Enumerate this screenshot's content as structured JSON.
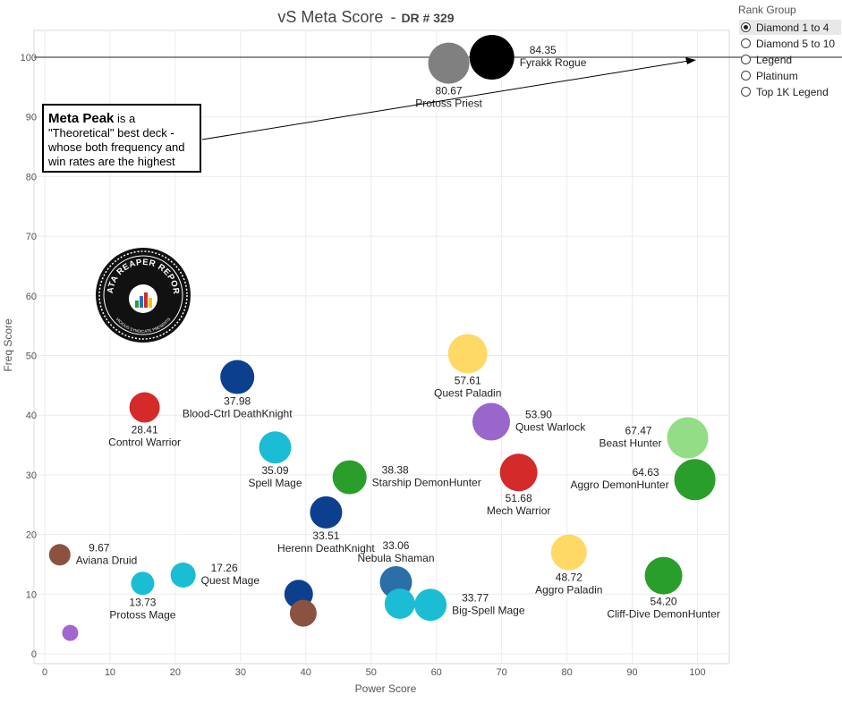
{
  "title": "vS Meta Score",
  "subtitle": "DR # 329",
  "rank_group": {
    "title": "Rank Group",
    "options": [
      "Diamond 1 to 4",
      "Diamond 5 to 10",
      "Legend",
      "Platinum",
      "Top 1K Legend"
    ],
    "selected": "Diamond 1 to 4"
  },
  "annotation": {
    "bold": "Meta Peak",
    "text": " is a \"Theoretical\" best deck - whose both frequency and win rates are the highest"
  },
  "logo": {
    "text_top": "DATA REAPER REPORT",
    "text_bottom": "VICIOUS SYNDICATE PRESENTS"
  },
  "colors": {
    "black": "#000000",
    "gray": "#808080",
    "yellow": "#FFD966",
    "purple": "#9966CC",
    "light_purple": "#A366D1",
    "red": "#D42A2A",
    "light_green": "#92DD86",
    "green": "#2A9E2A",
    "navy": "#0D3F8F",
    "cyan": "#1BBDD4",
    "blue": "#2A6FA8",
    "brown": "#8B5240"
  },
  "chart_data": {
    "type": "scatter",
    "xlabel": "Power Score",
    "ylabel": "Freq Score",
    "xlim": [
      0,
      104
    ],
    "ylim": [
      -1,
      105
    ],
    "xticks": [
      0,
      10,
      20,
      30,
      40,
      50,
      60,
      70,
      80,
      90,
      100
    ],
    "yticks": [
      0,
      10,
      20,
      30,
      40,
      50,
      60,
      70,
      80,
      90,
      100
    ],
    "grid": true,
    "reference_line_y": 100,
    "points": [
      {
        "name": "Fyrakk Rogue",
        "score": "84.35",
        "x": 68.5,
        "y": 100,
        "size": 25,
        "color": "black",
        "label_pos": "right"
      },
      {
        "name": "Protoss Priest",
        "score": "80.67",
        "x": 61.9,
        "y": 99,
        "size": 23,
        "color": "gray",
        "label_pos": "below"
      },
      {
        "name": "Quest Paladin",
        "score": "57.61",
        "x": 64.8,
        "y": 50.3,
        "size": 22,
        "color": "yellow",
        "label_pos": "below"
      },
      {
        "name": "Quest Warlock",
        "score": "53.90",
        "x": 68.4,
        "y": 38.9,
        "size": 21,
        "color": "purple",
        "label_pos": "right"
      },
      {
        "name": "Beast Hunter",
        "score": "67.47",
        "x": 98.5,
        "y": 36.2,
        "size": 23,
        "color": "light_green",
        "label_pos": "left"
      },
      {
        "name": "Aggro DemonHunter",
        "score": "64.63",
        "x": 99.6,
        "y": 29.2,
        "size": 23,
        "color": "green",
        "label_pos": "left"
      },
      {
        "name": "Mech Warrior",
        "score": "51.68",
        "x": 72.6,
        "y": 30.4,
        "size": 21,
        "color": "red",
        "label_pos": "below"
      },
      {
        "name": "Starship DemonHunter",
        "score": "38.38",
        "x": 46.7,
        "y": 29.6,
        "size": 19,
        "color": "green",
        "label_pos": "right"
      },
      {
        "name": "Blood-Ctrl DeathKnight",
        "score": "37.98",
        "x": 29.5,
        "y": 46.4,
        "size": 19,
        "color": "navy",
        "label_pos": "below"
      },
      {
        "name": "Control Warrior",
        "score": "28.41",
        "x": 15.3,
        "y": 41.3,
        "size": 17,
        "color": "red",
        "label_pos": "below"
      },
      {
        "name": "Spell Mage",
        "score": "35.09",
        "x": 35.3,
        "y": 34.6,
        "size": 18,
        "color": "cyan",
        "label_pos": "below"
      },
      {
        "name": "Herenn DeathKnight",
        "score": "33.51",
        "x": 43.1,
        "y": 23.7,
        "size": 18,
        "color": "navy",
        "label_pos": "below"
      },
      {
        "name": "Nebula Shaman",
        "score": "33.06",
        "x": 53.8,
        "y": 12,
        "size": 18,
        "color": "blue",
        "label_pos": "above"
      },
      {
        "name": "Big-Spell Mage",
        "score": "33.77",
        "x": 59.1,
        "y": 8.2,
        "size": 18,
        "color": "cyan",
        "label_pos": "right"
      },
      {
        "name": "Aggro Paladin",
        "score": "48.72",
        "x": 80.3,
        "y": 17,
        "size": 20,
        "color": "yellow",
        "label_pos": "below"
      },
      {
        "name": "Cliff-Dive DemonHunter",
        "score": "54.20",
        "x": 94.8,
        "y": 13.1,
        "size": 21,
        "color": "green",
        "label_pos": "below"
      },
      {
        "name": "Aviana Druid",
        "score": "9.67",
        "x": 2.3,
        "y": 16.6,
        "size": 12,
        "color": "brown",
        "label_pos": "right"
      },
      {
        "name": "Quest Mage",
        "score": "17.26",
        "x": 21.2,
        "y": 13.2,
        "size": 14,
        "color": "cyan",
        "label_pos": "right"
      },
      {
        "name": "Protoss Mage",
        "score": "13.73",
        "x": 15,
        "y": 11.8,
        "size": 13,
        "color": "cyan",
        "label_pos": "below"
      },
      {
        "name": "",
        "score": "",
        "x": 38.9,
        "y": 10,
        "size": 16,
        "color": "navy",
        "label_pos": "none"
      },
      {
        "name": "",
        "score": "",
        "x": 39.6,
        "y": 6.8,
        "size": 15,
        "color": "brown",
        "label_pos": "none"
      },
      {
        "name": "",
        "score": "",
        "x": 54.4,
        "y": 8.4,
        "size": 17,
        "color": "cyan",
        "label_pos": "none"
      },
      {
        "name": "",
        "score": "",
        "x": 3.9,
        "y": 3.5,
        "size": 9,
        "color": "light_purple",
        "label_pos": "none"
      }
    ]
  }
}
